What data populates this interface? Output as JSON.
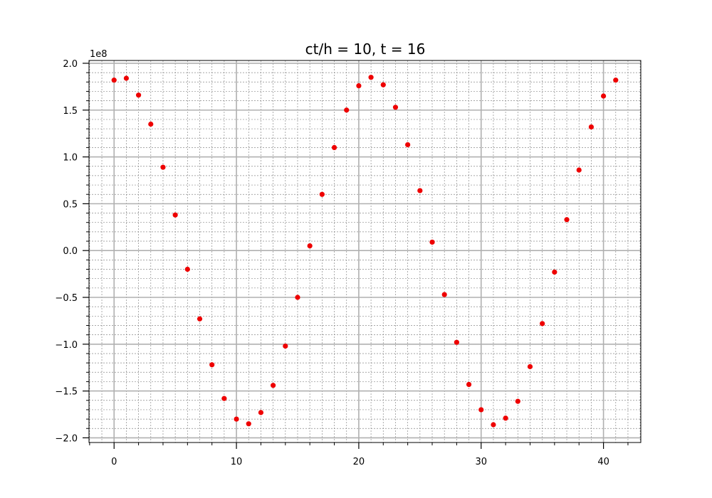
{
  "chart_data": {
    "type": "scatter",
    "title": "ct/h = 10, t = 16",
    "xlabel": "",
    "ylabel": "",
    "y_multiplier_label": "1e8",
    "xlim": [
      -2.05,
      43.05
    ],
    "ylim": [
      -2.05,
      2.03
    ],
    "x_ticks": [
      0,
      10,
      20,
      30,
      40
    ],
    "x_tick_labels": [
      "0",
      "10",
      "20",
      "30",
      "40"
    ],
    "y_ticks": [
      -2.0,
      -1.5,
      -1.0,
      -0.5,
      0.0,
      0.5,
      1.0,
      1.5,
      2.0
    ],
    "y_tick_labels": [
      "−2.0",
      "−1.5",
      "−1.0",
      "−0.5",
      "0.0",
      "0.5",
      "1.0",
      "1.5",
      "2.0"
    ],
    "grid": true,
    "minor_grid": true,
    "marker_color": "#ee0000",
    "series": [
      {
        "x": [
          0,
          1,
          2,
          3,
          4,
          5,
          6,
          7,
          8,
          9,
          10,
          11,
          12,
          13,
          14,
          15,
          16,
          17,
          18,
          19,
          20,
          21,
          22,
          23,
          24,
          25,
          26,
          27,
          28,
          29,
          30,
          31,
          32,
          33,
          34,
          35,
          36,
          37,
          38,
          39,
          40,
          41
        ],
        "y": [
          1.82,
          1.84,
          1.66,
          1.35,
          0.89,
          0.38,
          -0.2,
          -0.73,
          -1.22,
          -1.58,
          -1.8,
          -1.85,
          -1.73,
          -1.44,
          -1.02,
          -0.5,
          0.05,
          0.6,
          1.1,
          1.5,
          1.76,
          1.85,
          1.77,
          1.53,
          1.13,
          0.64,
          0.09,
          -0.47,
          -0.98,
          -1.43,
          -1.7,
          -1.86,
          -1.79,
          -1.61,
          -1.24,
          -0.78,
          -0.23,
          0.33,
          0.86,
          1.32,
          1.65,
          1.82
        ]
      }
    ]
  }
}
